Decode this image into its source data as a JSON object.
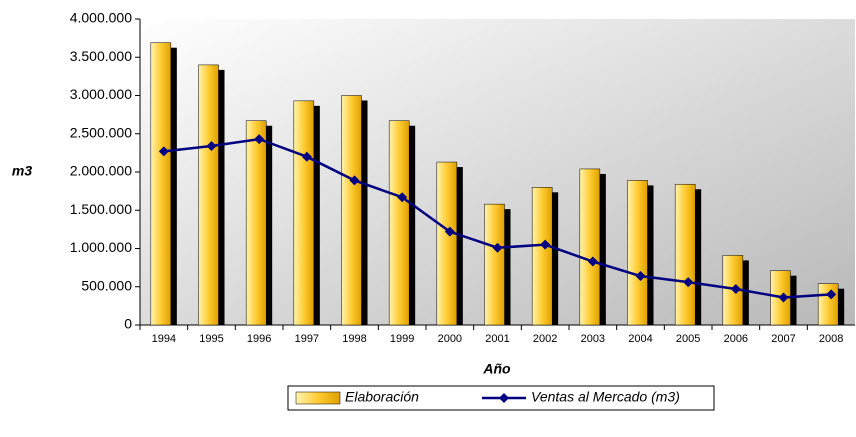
{
  "chart_data": {
    "type": "bar_line",
    "y_label": "m3",
    "x_label": "Año",
    "categories": [
      "1994",
      "1995",
      "1996",
      "1997",
      "1998",
      "1999",
      "2000",
      "2001",
      "2002",
      "2003",
      "2004",
      "2005",
      "2006",
      "2007",
      "2008"
    ],
    "series": [
      {
        "name": "Elaboración",
        "type": "bar",
        "color": "#ffcc33",
        "values": [
          3690000,
          3400000,
          2670000,
          2930000,
          3000000,
          2670000,
          2130000,
          1580000,
          1800000,
          2040000,
          1890000,
          1840000,
          910000,
          710000,
          540000
        ]
      },
      {
        "name": "Ventas al Mercado (m3)",
        "type": "line",
        "color": "#000080",
        "values": [
          2270000,
          2340000,
          2430000,
          2200000,
          1890000,
          1670000,
          1220000,
          1010000,
          1050000,
          830000,
          640000,
          560000,
          470000,
          360000,
          400000
        ]
      }
    ],
    "ylim": [
      0,
      4000000
    ],
    "yticks": [
      0,
      {
        "value": 500000,
        "label": "500.000"
      },
      {
        "value": 1000000,
        "label": "1.000.000"
      },
      {
        "value": 1500000,
        "label": "1.500.000"
      },
      {
        "value": 2000000,
        "label": "2.000.000"
      },
      {
        "value": 2500000,
        "label": "2.500.000"
      },
      {
        "value": 3000000,
        "label": "3.000.000"
      },
      {
        "value": 3500000,
        "label": "3.500.000"
      },
      {
        "value": 4000000,
        "label": "4.000.000"
      }
    ]
  }
}
